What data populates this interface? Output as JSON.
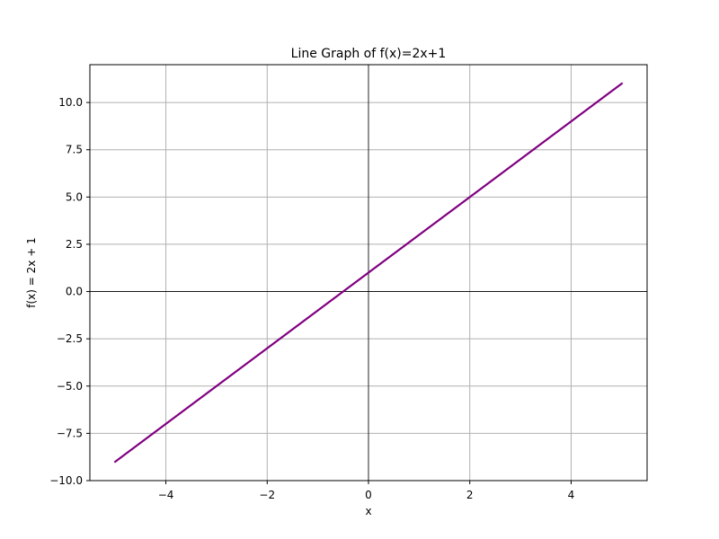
{
  "chart_data": {
    "type": "line",
    "title": "Line Graph of f(x)=2x+1",
    "xlabel": "x",
    "ylabel": "f(x) = 2x + 1",
    "xlim": [
      -5.5,
      5.5
    ],
    "ylim": [
      -10,
      12
    ],
    "xticks": [
      -4,
      -2,
      0,
      2,
      4
    ],
    "yticks": [
      -10.0,
      -7.5,
      -5.0,
      -2.5,
      0.0,
      2.5,
      5.0,
      7.5,
      10.0
    ],
    "xtick_labels": [
      "−4",
      "−2",
      "0",
      "2",
      "4"
    ],
    "ytick_labels": [
      "−10.0",
      "−7.5",
      "−5.0",
      "−2.5",
      "0.0",
      "2.5",
      "5.0",
      "7.5",
      "10.0"
    ],
    "grid": true,
    "reference_lines": {
      "x": 0,
      "y": 0
    },
    "series": [
      {
        "x": [
          -5,
          5
        ],
        "y": [
          -9,
          11
        ],
        "color": "#800080"
      }
    ]
  }
}
